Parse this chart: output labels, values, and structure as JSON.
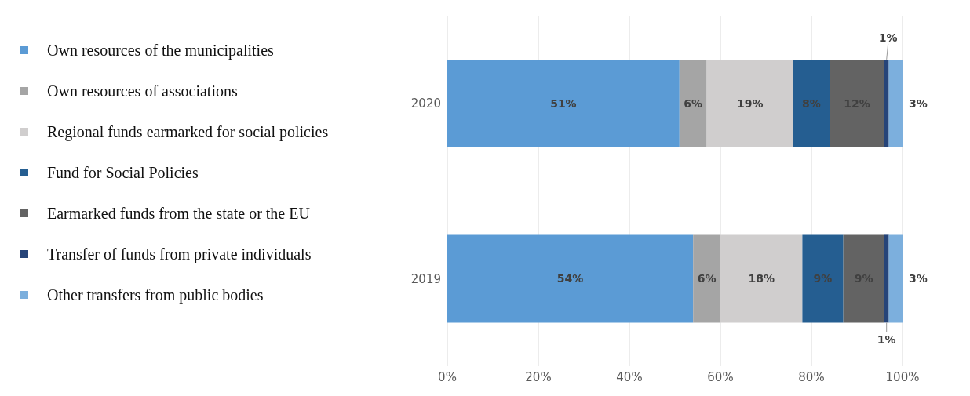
{
  "chart_data": {
    "type": "bar",
    "orientation": "horizontal",
    "stacked": true,
    "categories": [
      "2020",
      "2019"
    ],
    "series": [
      {
        "name": "Own resources of the municipalities",
        "color": "#5b9bd5",
        "values": [
          51,
          54
        ],
        "value_labels": [
          "51%",
          "54%"
        ]
      },
      {
        "name": "Own resources of associations",
        "color": "#a5a5a5",
        "values": [
          6,
          6
        ],
        "value_labels": [
          "6%",
          "6%"
        ]
      },
      {
        "name": "Regional funds earmarked for social policies",
        "color": "#d0cece",
        "values": [
          19,
          18
        ],
        "value_labels": [
          "19%",
          "18%"
        ]
      },
      {
        "name": "Fund for Social Policies",
        "color": "#255e91",
        "values": [
          8,
          9
        ],
        "value_labels": [
          "8%",
          "9%"
        ]
      },
      {
        "name": "Earmarked funds from the state or the EU",
        "color": "#636363",
        "values": [
          12,
          9
        ],
        "value_labels": [
          "12%",
          "9%"
        ]
      },
      {
        "name": "Transfer of funds from private individuals",
        "color": "#264478",
        "values": [
          1,
          1
        ],
        "value_labels": [
          "1%",
          "1%"
        ]
      },
      {
        "name": "Other transfers from public bodies",
        "color": "#7cafdd",
        "values": [
          3,
          3
        ],
        "value_labels": [
          "3%",
          "3%"
        ]
      }
    ],
    "xlim": [
      0,
      100
    ],
    "xticks": [
      {
        "value": 0,
        "label": "0%"
      },
      {
        "value": 20,
        "label": "20%"
      },
      {
        "value": 40,
        "label": "40%"
      },
      {
        "value": 60,
        "label": "60%"
      },
      {
        "value": 80,
        "label": "80%"
      },
      {
        "value": 100,
        "label": "100%"
      }
    ],
    "grid": "x",
    "legend": "left",
    "marker": "square"
  }
}
